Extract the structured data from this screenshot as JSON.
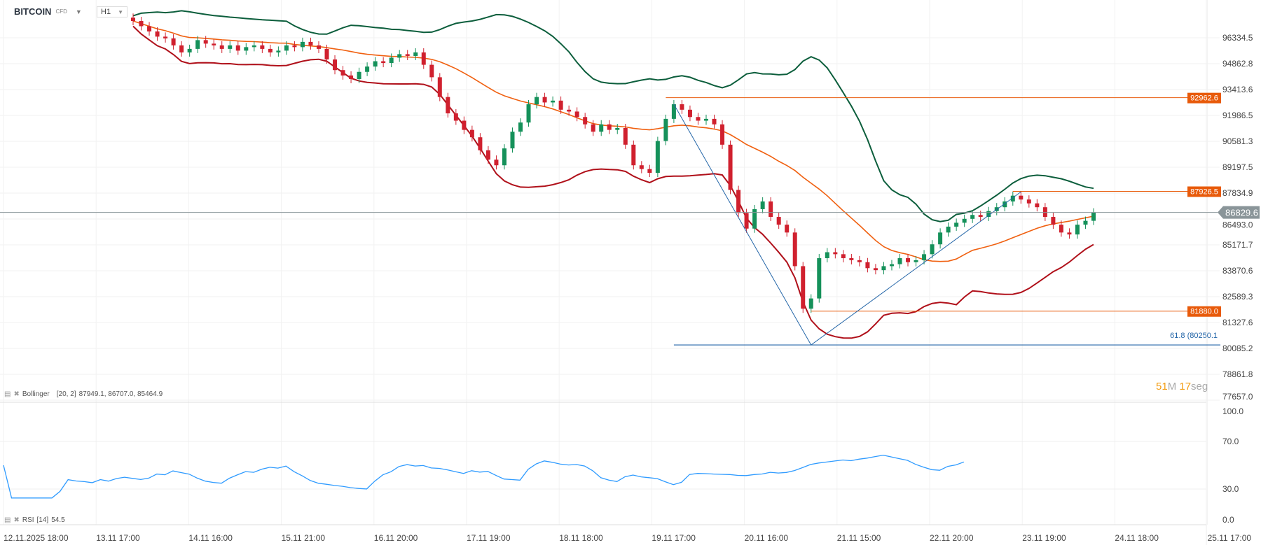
{
  "header": {
    "symbol": "BITCOIN",
    "symbol_type": "CFD",
    "timeframe": "H1"
  },
  "colors": {
    "up": "#15915a",
    "down": "#d0202e",
    "bb_upper": "#0c5e3c",
    "bb_mid": "#f06010",
    "bb_lower": "#b0101a",
    "hline": "#e85a0a",
    "fib": "#2466a8",
    "rsi": "#2f9bff",
    "price_tag": "#8a9599"
  },
  "timer": {
    "minutes": "51",
    "m_unit": "M",
    "seconds": "17",
    "s_unit": "seg"
  },
  "indicators": {
    "bollinger": {
      "name": "Bollinger",
      "params": "[20, 2]",
      "values": "87949.1,  86707.0,  85464.9"
    },
    "rsi": {
      "name": "RSI",
      "params": "[14]",
      "value": "54.5"
    }
  },
  "chart_data": {
    "type": "candlestick",
    "price_scale": "log",
    "ylim": [
      77657.0,
      96334.5
    ],
    "yticks": [
      96334.5,
      94862.8,
      93413.6,
      91986.5,
      90581.3,
      89197.5,
      87834.9,
      86493.0,
      85171.7,
      83870.6,
      82589.3,
      81327.6,
      80085.2,
      78861.8,
      77657.0
    ],
    "ytick_labels": [
      "96334.5",
      "94862.8",
      "93413.6",
      "91986.5",
      "90581.3",
      "89197.5",
      "87834.9",
      "86493.0",
      "85171.7",
      "83870.6",
      "82589.3",
      "81327.6",
      "80085.2",
      "78861.8",
      "77657.0"
    ],
    "xtick_labels": [
      "12.11.2025  18:00",
      "13.11  17:00",
      "14.11  16:00",
      "15.11  21:00",
      "16.11  20:00",
      "17.11  19:00",
      "18.11  18:00",
      "19.11  17:00",
      "20.11  16:00",
      "21.11  15:00",
      "22.11  20:00",
      "23.11  19:00",
      "24.11  18:00",
      "25.11  17:00"
    ],
    "close": [
      97300,
      97000,
      96700,
      96400,
      96300,
      95900,
      95500,
      95700,
      96200,
      96000,
      95900,
      95700,
      95900,
      95600,
      95800,
      95900,
      95700,
      95500,
      95600,
      95900,
      95800,
      96100,
      95900,
      95700,
      95100,
      94500,
      94200,
      94000,
      94400,
      94700,
      95000,
      94900,
      95200,
      95400,
      95300,
      95500,
      94800,
      94100,
      93000,
      92100,
      91700,
      91200,
      90800,
      90100,
      89600,
      89300,
      90200,
      91100,
      91600,
      92600,
      93000,
      92700,
      92800,
      92300,
      92200,
      91900,
      91500,
      91100,
      91500,
      91200,
      91300,
      90400,
      89300,
      89100,
      88900,
      90600,
      91800,
      92600,
      92300,
      91900,
      91700,
      91800,
      91500,
      90400,
      88000,
      86800,
      86000,
      87000,
      87400,
      86600,
      86200,
      85800,
      84100,
      82000,
      82500,
      84500,
      84800,
      84700,
      84500,
      84400,
      84300,
      84000,
      83900,
      84100,
      84200,
      84500,
      84300,
      84400,
      84700,
      85200,
      85800,
      86100,
      86300,
      86500,
      86700,
      86600,
      86900,
      87100,
      87400,
      87700,
      87500,
      87300,
      87100,
      86600,
      86200,
      85800,
      85700,
      86200,
      86400,
      86830
    ],
    "current_price": {
      "value": 86829.6,
      "label": "86829.6"
    },
    "horizontal_lines": [
      {
        "value": 92962.6,
        "label": "92962.6",
        "from_bar": 66
      },
      {
        "value": 87926.5,
        "label": "87926.5",
        "from_bar": 109
      },
      {
        "value": 81880.0,
        "label": "81880.0",
        "from_bar": 84
      }
    ],
    "fibonacci": {
      "level": "61.8",
      "value": 80250.1,
      "label": "61.8 (80250.1",
      "from_bar": 67
    },
    "trend_line": [
      {
        "bar": 67,
        "price": 92600
      },
      {
        "bar": 84,
        "price": 80250.1
      },
      {
        "bar": 110,
        "price": 87900
      }
    ],
    "rsi_ylim": [
      0,
      100
    ],
    "rsi_ticks": [
      "100.0",
      "70.0",
      "30.0",
      "0.0"
    ]
  }
}
